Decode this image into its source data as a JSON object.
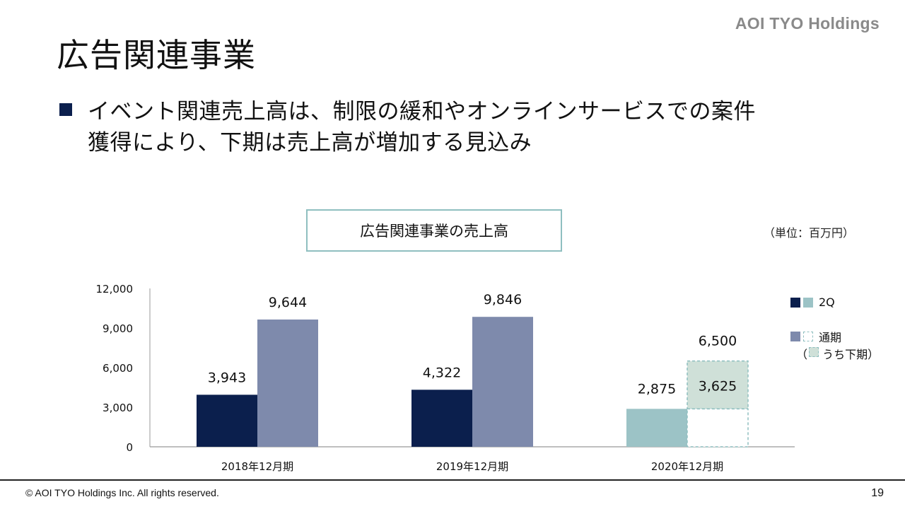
{
  "header": {
    "logo_text": "AOI TYO Holdings",
    "title": "広告関連事業"
  },
  "bullet": {
    "lines": [
      "イベント関連売上高は、制限の緩和やオンラインサービスでの案件",
      "獲得により、下期は売上高が増加する見込み"
    ]
  },
  "chart_title": "広告関連事業の売上高",
  "unit_label": "（単位：百万円）",
  "legend": {
    "q2_label": "2Q",
    "full_label": "通期",
    "second_half_label": "（　 うち下期）"
  },
  "footer": {
    "copyright": "© AOI TYO Holdings Inc. All rights reserved.",
    "page": "19"
  },
  "colors": {
    "navy": "#0b1f4d",
    "teal": "#9cc3c6",
    "slate": "#7e8aac",
    "pale_green": "#cfe0d8",
    "dash_border": "#8fbfc0"
  },
  "chart_data": {
    "type": "bar",
    "categories": [
      "2018年12月期",
      "2019年12月期",
      "2020年12月期"
    ],
    "series": [
      {
        "name": "2Q",
        "values": [
          3943,
          4322,
          2875
        ],
        "labels": [
          "3,943",
          "4,322",
          "2,875"
        ]
      },
      {
        "name": "通期",
        "values": [
          9644,
          9846,
          6500
        ],
        "labels": [
          "9,644",
          "9,846",
          "6,500"
        ],
        "forecast_last": true
      },
      {
        "name": "うち下期",
        "values": [
          null,
          null,
          3625
        ],
        "labels": [
          "",
          "",
          "3,625"
        ]
      }
    ],
    "yticks": [
      0,
      3000,
      6000,
      9000,
      12000
    ],
    "ytick_labels": [
      "0",
      "3,000",
      "6,000",
      "9,000",
      "12,000"
    ],
    "ylim": [
      0,
      12000
    ],
    "grid": false,
    "legend_position": "right"
  }
}
